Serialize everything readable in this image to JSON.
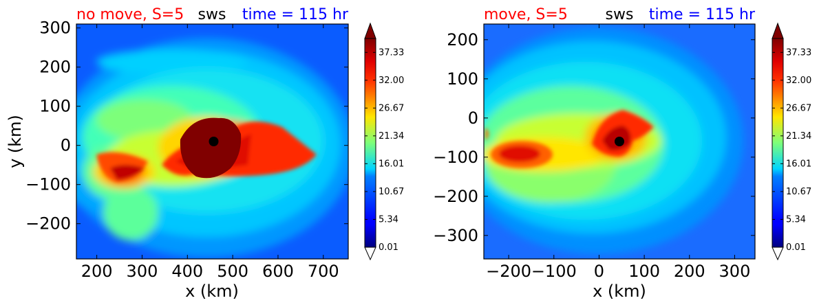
{
  "chart_data": [
    {
      "type": "contour",
      "title_left": "no move, S=5",
      "title_center": "sws",
      "title_right": "time = 115 hr",
      "xlabel": "x (km)",
      "ylabel": "y (km)",
      "xlim": [
        155,
        755
      ],
      "ylim": [
        -290,
        310
      ],
      "xticks": [
        200,
        300,
        400,
        500,
        600,
        700
      ],
      "yticks": [
        300,
        200,
        100,
        0,
        -100,
        -200
      ],
      "xtick_labels": [
        "200",
        "300",
        "400",
        "500",
        "600",
        "700"
      ],
      "ytick_labels": [
        "300",
        "200",
        "100",
        "0",
        "−100",
        "−200"
      ],
      "center_marker": [
        458,
        10
      ],
      "colorbar_ticks": [
        0.01,
        5.34,
        10.67,
        16.01,
        21.34,
        26.67,
        32.0,
        37.33
      ],
      "colorbar_labels": [
        "0.01",
        "5.34",
        "10.67",
        "16.01",
        "21.34",
        "26.67",
        "32.00",
        "37.33"
      ],
      "colorbar_max": 40,
      "colorbar_extend": "both"
    },
    {
      "type": "contour",
      "title_left": "move, S=5",
      "title_center": "sws",
      "title_right": "time = 115 hr",
      "xlabel": "x (km)",
      "ylabel": "",
      "xlim": [
        -255,
        345
      ],
      "ylim": [
        -360,
        240
      ],
      "xticks": [
        -200,
        -100,
        0,
        100,
        200,
        300
      ],
      "yticks": [
        200,
        100,
        0,
        -100,
        -200,
        -300
      ],
      "xtick_labels": [
        "−200",
        "−100",
        "0",
        "100",
        "200",
        "300"
      ],
      "ytick_labels": [
        "200",
        "100",
        "0",
        "−100",
        "−200",
        "−300"
      ],
      "center_marker": [
        45,
        -60
      ],
      "colorbar_ticks": [
        0.01,
        5.34,
        10.67,
        16.01,
        21.34,
        26.67,
        32.0,
        37.33
      ],
      "colorbar_labels": [
        "0.01",
        "5.34",
        "10.67",
        "16.01",
        "21.34",
        "26.67",
        "32.00",
        "37.33"
      ],
      "colorbar_max": 40,
      "colorbar_extend": "both"
    }
  ],
  "colors": {
    "title_left": "#ff0000",
    "title_center": "#000000",
    "title_right": "#0000ff",
    "marker": "#000000"
  }
}
